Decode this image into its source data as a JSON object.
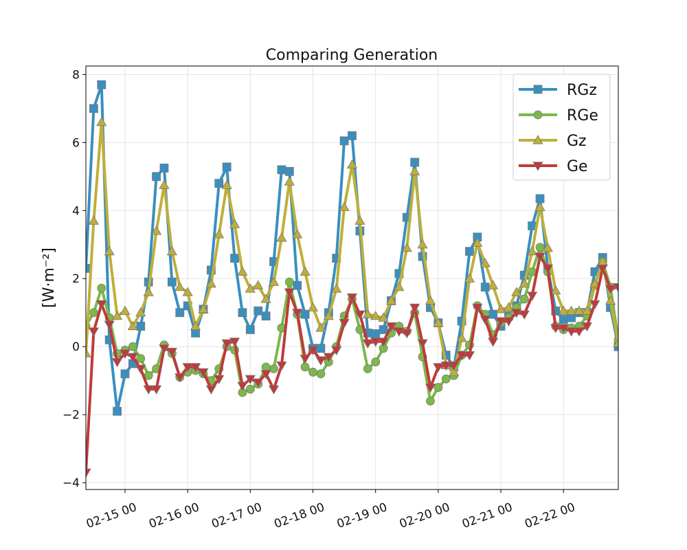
{
  "chart_data": {
    "type": "line",
    "title": "Comparing Generation",
    "xlabel": "",
    "ylabel": "[W·m⁻²]",
    "xlim": [
      "2022-02-14 09:00",
      "2022-02-22 21:00"
    ],
    "ylim": [
      -4.2,
      8.25
    ],
    "x_ticks": [
      {
        "t": "2022-02-15 00:00",
        "label": "02-15 00"
      },
      {
        "t": "2022-02-16 00:00",
        "label": "02-16 00"
      },
      {
        "t": "2022-02-17 00:00",
        "label": "02-17 00"
      },
      {
        "t": "2022-02-18 00:00",
        "label": "02-18 00"
      },
      {
        "t": "2022-02-19 00:00",
        "label": "02-19 00"
      },
      {
        "t": "2022-02-20 00:00",
        "label": "02-20 00"
      },
      {
        "t": "2022-02-21 00:00",
        "label": "02-21 00"
      },
      {
        "t": "2022-02-22 00:00",
        "label": "02-22 00"
      }
    ],
    "y_ticks": [
      -4,
      -2,
      0,
      2,
      4,
      6,
      8
    ],
    "y_tick_labels": [
      "−4",
      "−2",
      "0",
      "2",
      "4",
      "6",
      "8"
    ],
    "grid": true,
    "legend_position": "top-right",
    "x_start": "2022-02-14 09:00",
    "x_step_hours": 3,
    "series": [
      {
        "name": "RGz",
        "color": "#3a8fbf",
        "marker": "square",
        "values": [
          2.3,
          7.0,
          7.7,
          0.2,
          -1.9,
          -0.8,
          -0.5,
          0.6,
          1.9,
          5.0,
          5.25,
          1.9,
          1.0,
          1.2,
          0.4,
          1.1,
          2.25,
          4.8,
          5.28,
          2.6,
          1.0,
          0.5,
          1.05,
          0.9,
          2.5,
          5.2,
          5.15,
          1.8,
          0.95,
          -0.05,
          -0.05,
          1.0,
          2.6,
          6.05,
          6.2,
          3.4,
          0.4,
          0.38,
          0.5,
          1.35,
          2.15,
          3.8,
          5.42,
          2.65,
          1.15,
          0.7,
          -0.25,
          -0.6,
          0.75,
          2.8,
          3.22,
          1.75,
          0.95,
          0.6,
          0.9,
          1.2,
          2.1,
          3.55,
          4.35,
          2.3,
          1.05,
          0.8,
          0.85,
          1.0,
          1.0,
          2.2,
          2.62,
          1.15,
          0.0
        ]
      },
      {
        "name": "RGe",
        "color": "#7cb84a",
        "marker": "circle",
        "values": [
          0.6,
          1.0,
          1.72,
          0.85,
          -0.2,
          -0.1,
          0.0,
          -0.35,
          -0.85,
          -0.65,
          0.05,
          -0.2,
          -0.9,
          -0.75,
          -0.7,
          -0.8,
          -1.0,
          -0.65,
          0.0,
          -0.1,
          -1.35,
          -1.25,
          -1.1,
          -0.6,
          -0.65,
          0.55,
          1.9,
          0.95,
          -0.6,
          -0.75,
          -0.8,
          -0.45,
          0.0,
          0.9,
          1.4,
          0.5,
          -0.65,
          -0.45,
          -0.05,
          0.4,
          0.6,
          0.45,
          1.0,
          -0.3,
          -1.6,
          -1.2,
          -0.95,
          -0.85,
          -0.25,
          0.05,
          1.2,
          0.95,
          0.35,
          0.7,
          0.85,
          1.15,
          1.4,
          2.2,
          2.92,
          2.2,
          0.6,
          0.5,
          0.55,
          0.6,
          0.9,
          1.8,
          2.5,
          1.75,
          0.2
        ]
      },
      {
        "name": "Gz",
        "color": "#bfae3a",
        "marker": "triangle-up",
        "values": [
          -0.2,
          3.7,
          6.6,
          2.8,
          0.9,
          1.05,
          0.6,
          1.0,
          1.6,
          3.4,
          4.75,
          2.8,
          1.75,
          1.6,
          0.6,
          1.1,
          1.85,
          3.3,
          4.75,
          3.6,
          2.2,
          1.7,
          1.8,
          1.4,
          1.9,
          3.2,
          4.85,
          3.3,
          2.2,
          1.15,
          0.55,
          0.9,
          1.7,
          4.1,
          5.35,
          3.7,
          0.95,
          0.9,
          0.85,
          1.35,
          1.75,
          2.9,
          5.15,
          3.0,
          1.35,
          0.7,
          -0.55,
          -0.75,
          0.25,
          2.0,
          3.05,
          2.45,
          1.8,
          1.1,
          1.15,
          1.6,
          1.85,
          2.8,
          4.1,
          2.9,
          1.65,
          1.05,
          1.05,
          1.05,
          1.05,
          1.85,
          2.5,
          1.35,
          0.1
        ]
      },
      {
        "name": "Ge",
        "color": "#bf3a3a",
        "marker": "triangle-down",
        "values": [
          -3.7,
          0.45,
          1.25,
          0.65,
          -0.45,
          -0.2,
          -0.3,
          -0.65,
          -1.25,
          -1.25,
          -0.05,
          -0.15,
          -0.9,
          -0.6,
          -0.6,
          -0.75,
          -1.25,
          -0.95,
          0.1,
          0.15,
          -1.15,
          -0.95,
          -1.05,
          -0.8,
          -1.25,
          -0.55,
          1.6,
          1.0,
          -0.35,
          -0.1,
          -0.4,
          -0.3,
          -0.1,
          0.7,
          1.45,
          0.95,
          0.1,
          0.15,
          0.15,
          0.6,
          0.45,
          0.4,
          1.15,
          0.1,
          -1.2,
          -0.6,
          -0.55,
          -0.55,
          -0.25,
          -0.25,
          1.15,
          0.8,
          0.15,
          0.75,
          0.75,
          1.0,
          0.95,
          1.5,
          2.65,
          2.3,
          0.55,
          0.55,
          0.45,
          0.45,
          0.6,
          1.25,
          2.3,
          1.7,
          1.75
        ]
      }
    ]
  }
}
